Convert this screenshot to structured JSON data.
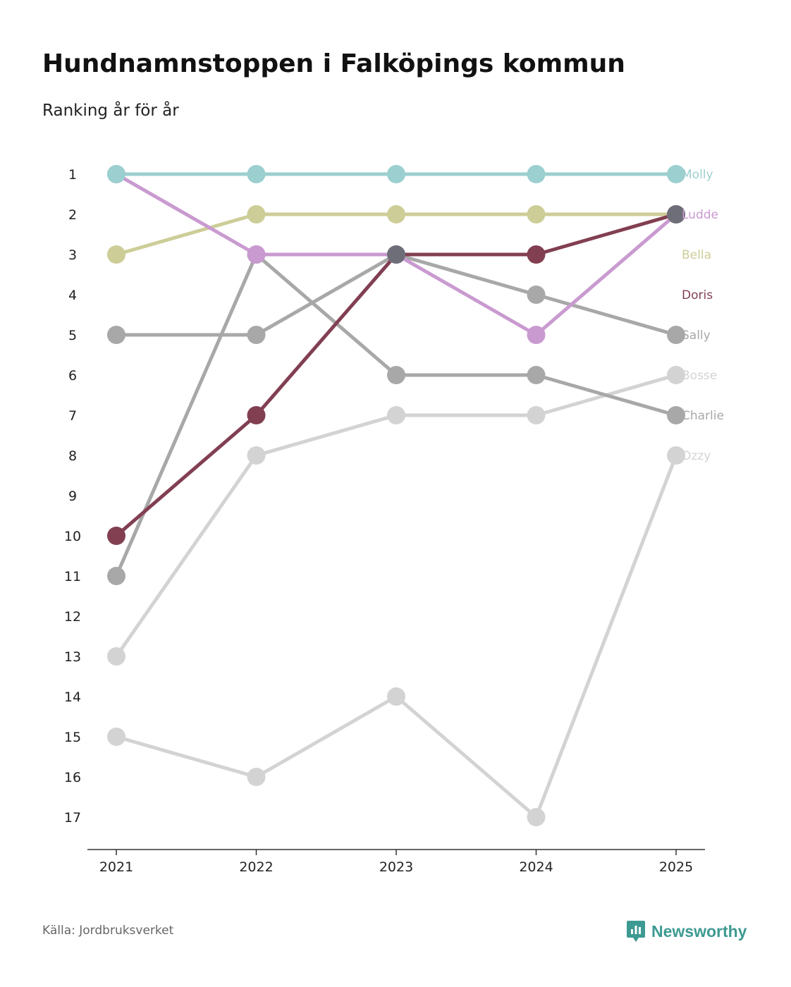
{
  "header": {
    "title": "Hundnamnstoppen i Falköpings kommun",
    "subtitle": "Ranking år för år"
  },
  "footer": {
    "source": "Källa: Jordbruksverket",
    "brand": "Newsworthy",
    "brand_icon": "chart-badge-icon"
  },
  "colors": {
    "brand": "#3d9a92",
    "axis": "#333333"
  },
  "chart_data": {
    "type": "line",
    "title": "Hundnamnstoppen i Falköpings kommun",
    "subtitle": "Ranking år för år",
    "xlabel": "",
    "ylabel": "",
    "x": [
      "2021",
      "2022",
      "2023",
      "2024",
      "2025"
    ],
    "y_ticks": [
      1,
      2,
      3,
      4,
      5,
      6,
      7,
      8,
      9,
      10,
      11,
      12,
      13,
      14,
      15,
      16,
      17
    ],
    "ylim": [
      17,
      1
    ],
    "y_inverted": true,
    "grid": false,
    "legend": "direct labels at right end",
    "series": [
      {
        "name": "Ozzy",
        "color": "#d3d3d3",
        "values": [
          15,
          16,
          14,
          17,
          8
        ]
      },
      {
        "name": "Bosse",
        "color": "#d3d3d3",
        "values": [
          13,
          8,
          7,
          7,
          6
        ]
      },
      {
        "name": "Charlie",
        "color": "#a8a8a8",
        "values": [
          11,
          3,
          6,
          6,
          7
        ]
      },
      {
        "name": "Sally",
        "color": "#a8a8a8",
        "values": [
          5,
          5,
          3,
          4,
          5
        ]
      },
      {
        "name": "Bella",
        "color": "#cdcd98",
        "values": [
          3,
          2,
          2,
          2,
          2
        ]
      },
      {
        "name": "Ludde",
        "color": "#c99ad0",
        "values": [
          1,
          3,
          3,
          5,
          2
        ]
      },
      {
        "name": "Doris",
        "color": "#823f52",
        "values": [
          10,
          7,
          3,
          3,
          2
        ]
      },
      {
        "name": "Molly",
        "color": "#9ccfcf",
        "values": [
          1,
          1,
          1,
          1,
          1
        ]
      }
    ],
    "end_label_ranks": {
      "Molly": 1,
      "Ludde": 2,
      "Bella": 3,
      "Doris": 4,
      "Sally": 5,
      "Bosse": 6,
      "Charlie": 7,
      "Ozzy": 8
    },
    "overlap_color": "#6e6e78"
  }
}
